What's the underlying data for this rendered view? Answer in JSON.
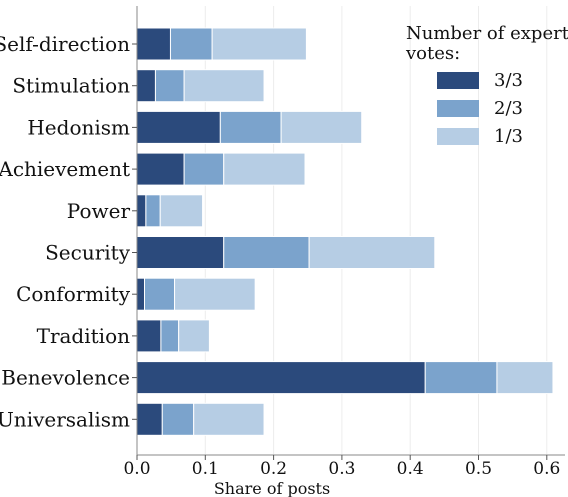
{
  "chart_data": {
    "type": "bar",
    "orientation": "horizontal",
    "stacked": true,
    "categories": [
      "Self-direction",
      "Stimulation",
      "Hedonism",
      "Achievement",
      "Power",
      "Security",
      "Conformity",
      "Tradition",
      "Benevolence",
      "Universalism"
    ],
    "series": [
      {
        "name": "3/3",
        "color": "#2b4a7c",
        "values": [
          0.049,
          0.027,
          0.122,
          0.069,
          0.013,
          0.127,
          0.011,
          0.035,
          0.422,
          0.037
        ]
      },
      {
        "name": "2/3",
        "color": "#7ba3cc",
        "values": [
          0.061,
          0.042,
          0.089,
          0.058,
          0.021,
          0.125,
          0.044,
          0.026,
          0.105,
          0.046
        ]
      },
      {
        "name": "1/3",
        "color": "#b6cde4",
        "values": [
          0.138,
          0.117,
          0.118,
          0.119,
          0.062,
          0.184,
          0.118,
          0.045,
          0.082,
          0.103
        ]
      }
    ],
    "xlabel": "Share of posts",
    "ylabel": "",
    "xlim": [
      0,
      0.62
    ],
    "xticks": [
      0.0,
      0.1,
      0.2,
      0.3,
      0.4,
      0.5,
      0.6
    ],
    "xtick_labels": [
      "0.0",
      "0.1",
      "0.2",
      "0.3",
      "0.4",
      "0.5",
      "0.6"
    ],
    "grid": "vertical",
    "legend": {
      "title": "Number of expert votes:",
      "title_lines": [
        "Number of expert",
        "votes:"
      ],
      "placement": "top-right"
    }
  }
}
